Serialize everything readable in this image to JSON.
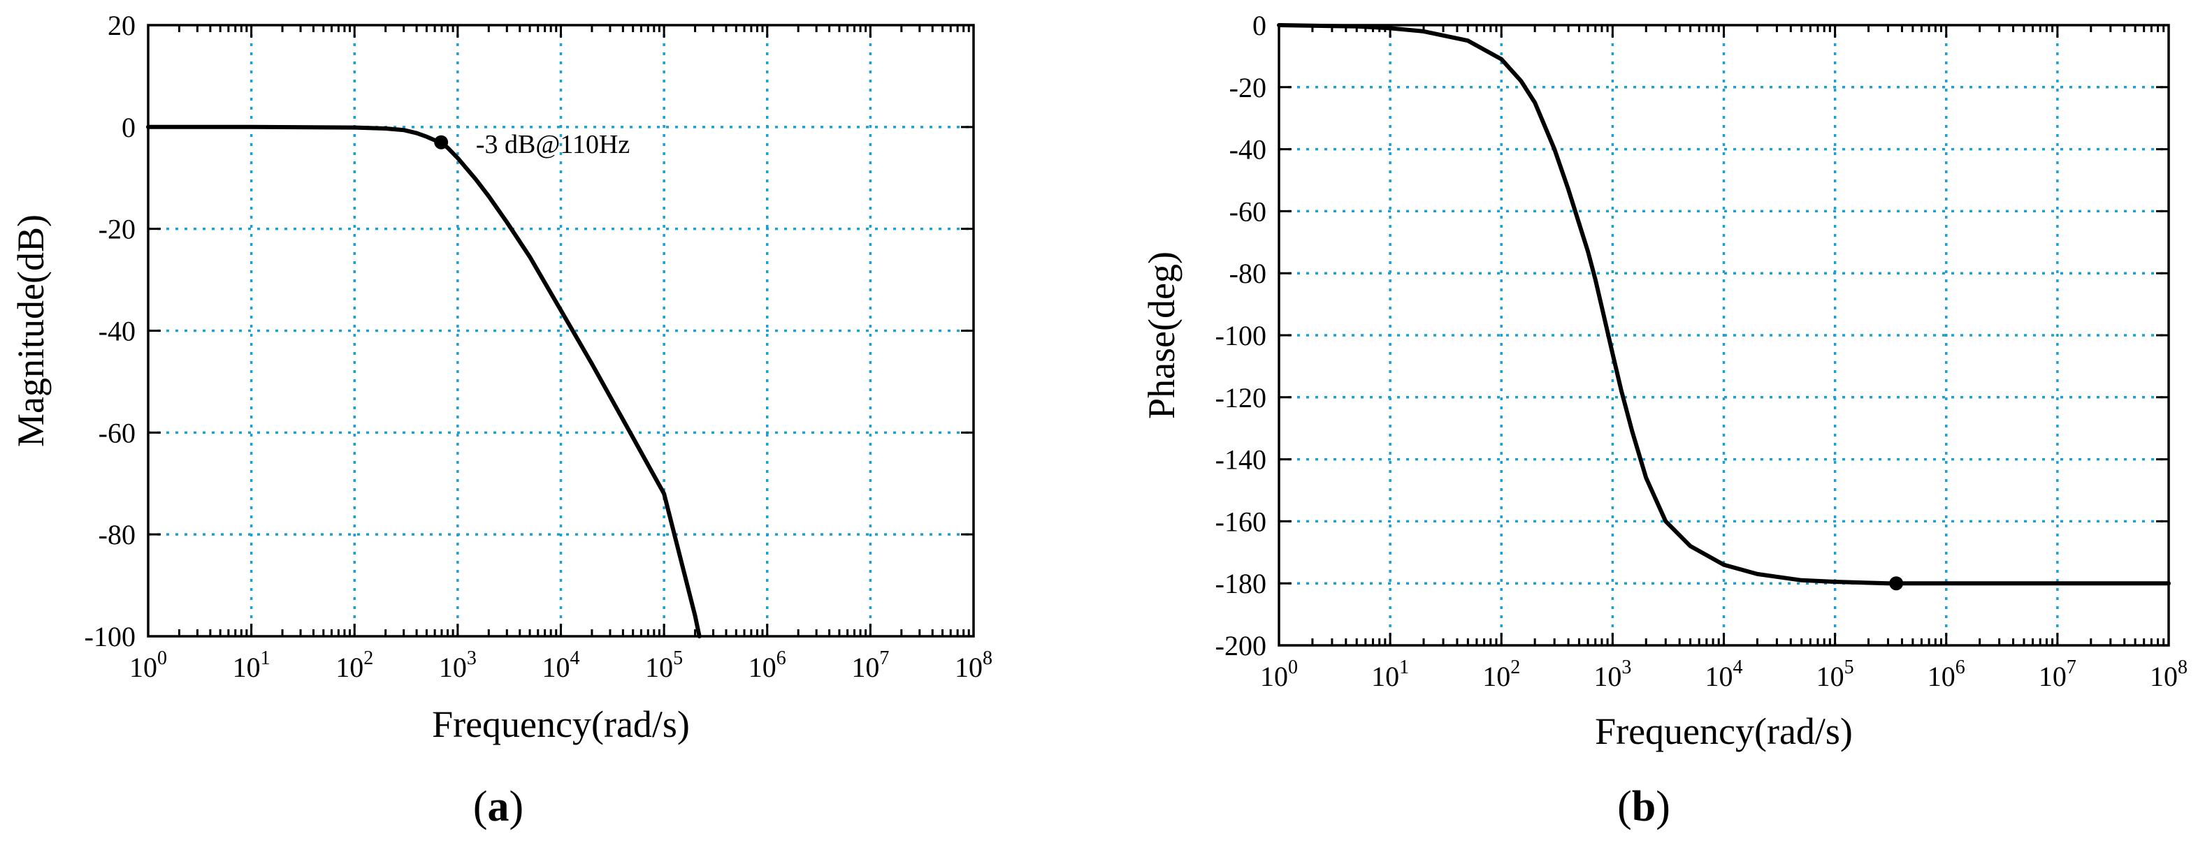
{
  "chart_data": [
    {
      "type": "line",
      "panel_label": "(a)",
      "panel_letter": "a",
      "xlabel": "Frequency(rad/s)",
      "ylabel": "Magnitude(dB)",
      "xscale": "log",
      "xlim": [
        1,
        100000000
      ],
      "ylim": [
        -100,
        20
      ],
      "grid": true,
      "x_ticks": [
        1,
        10,
        100,
        1000,
        10000,
        100000,
        1000000,
        10000000,
        100000000
      ],
      "x_tick_labels": [
        {
          "base": "10",
          "exp": "0"
        },
        {
          "base": "10",
          "exp": "1"
        },
        {
          "base": "10",
          "exp": "2"
        },
        {
          "base": "10",
          "exp": "3"
        },
        {
          "base": "10",
          "exp": "4"
        },
        {
          "base": "10",
          "exp": "5"
        },
        {
          "base": "10",
          "exp": "6"
        },
        {
          "base": "10",
          "exp": "7"
        },
        {
          "base": "10",
          "exp": "8"
        }
      ],
      "y_ticks": [
        20,
        0,
        -20,
        -40,
        -60,
        -80,
        -100
      ],
      "y_tick_labels": [
        "20",
        "0",
        "-20",
        "-40",
        "-60",
        "-80",
        "-100"
      ],
      "series": [
        {
          "x": [
            1,
            10,
            100,
            200,
            300,
            400,
            500,
            600,
            691,
            800,
            1000,
            1500,
            2000,
            3000,
            5000,
            10000,
            20000,
            50000,
            100000,
            200000,
            220000
          ],
          "y": [
            0,
            0,
            -0.1,
            -0.3,
            -0.6,
            -1.2,
            -1.9,
            -2.6,
            -3.0,
            -4.1,
            -6.1,
            -10.3,
            -13.6,
            -18.7,
            -25.5,
            -36.0,
            -46.5,
            -61.0,
            -72.0,
            -96.0,
            -100
          ],
          "color": "#000000"
        }
      ],
      "markers": [
        {
          "x": 691,
          "y": -3.0
        }
      ],
      "annotations": [
        {
          "text": "-3 dB@110Hz",
          "x": 1500,
          "y": -3.2
        }
      ]
    },
    {
      "type": "line",
      "panel_label": "(b)",
      "panel_letter": "b",
      "xlabel": "Frequency(rad/s)",
      "ylabel": "Phase(deg)",
      "xscale": "log",
      "xlim": [
        1,
        100000000
      ],
      "ylim": [
        -200,
        0
      ],
      "grid": true,
      "x_ticks": [
        1,
        10,
        100,
        1000,
        10000,
        100000,
        1000000,
        10000000,
        100000000
      ],
      "x_tick_labels": [
        {
          "base": "10",
          "exp": "0"
        },
        {
          "base": "10",
          "exp": "1"
        },
        {
          "base": "10",
          "exp": "2"
        },
        {
          "base": "10",
          "exp": "3"
        },
        {
          "base": "10",
          "exp": "4"
        },
        {
          "base": "10",
          "exp": "5"
        },
        {
          "base": "10",
          "exp": "6"
        },
        {
          "base": "10",
          "exp": "7"
        },
        {
          "base": "10",
          "exp": "8"
        }
      ],
      "y_ticks": [
        0,
        -20,
        -40,
        -60,
        -80,
        -100,
        -120,
        -140,
        -160,
        -180,
        -200
      ],
      "y_tick_labels": [
        "0",
        "-20",
        "-40",
        "-60",
        "-80",
        "-100",
        "-120",
        "-140",
        "-160",
        "-180",
        "-200"
      ],
      "series": [
        {
          "x": [
            1,
            5,
            10,
            20,
            50,
            100,
            150,
            200,
            300,
            400,
            500,
            600,
            700,
            800,
            1000,
            1200,
            1500,
            2000,
            3000,
            5000,
            10000,
            20000,
            50000,
            100000,
            300000,
            1000000,
            100000000
          ],
          "y": [
            0,
            -0.4,
            -1,
            -2,
            -5,
            -11,
            -18,
            -25,
            -40,
            -53,
            -64,
            -73,
            -82,
            -91,
            -106,
            -118,
            -131,
            -146,
            -160,
            -168,
            -174,
            -177,
            -179,
            -179.5,
            -180,
            -180,
            -180
          ],
          "color": "#000000"
        }
      ],
      "markers": [
        {
          "x": 355000,
          "y": -180
        }
      ]
    }
  ]
}
